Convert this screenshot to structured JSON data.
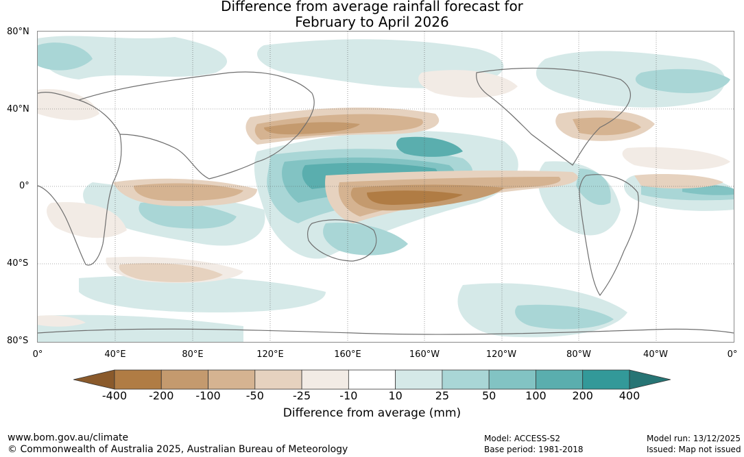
{
  "title": {
    "line1": "Difference from average rainfall forecast for",
    "line2": "February to April 2026"
  },
  "latitude_labels": [
    "80°N",
    "40°N",
    "0°",
    "40°S",
    "80°S"
  ],
  "longitude_labels": [
    "0°",
    "40°E",
    "80°E",
    "120°E",
    "160°E",
    "160°W",
    "120°W",
    "80°W",
    "40°W",
    "0°"
  ],
  "colorbar": {
    "ticks": [
      "-400",
      "-200",
      "-100",
      "-50",
      "-25",
      "-10",
      "10",
      "25",
      "50",
      "100",
      "200",
      "400"
    ],
    "colors": [
      "#8a5a2b",
      "#b07c44",
      "#c49a6e",
      "#d5b391",
      "#e6d2bf",
      "#f2ebe5",
      "#ffffff",
      "#d5e9e8",
      "#a9d6d6",
      "#82c3c3",
      "#5aaeae",
      "#339999",
      "#267474"
    ],
    "label": "Difference from average (mm)"
  },
  "footer": {
    "website": "www.bom.gov.au/climate",
    "copyright": "© Commonwealth of Australia 2025, Australian Bureau of Meteorology",
    "model": "Model: ACCESS-S2",
    "base_period": "Base period: 1981-2018",
    "model_run": "Model run: 13/12/2025",
    "issued": "Issued: Map not issued"
  }
}
